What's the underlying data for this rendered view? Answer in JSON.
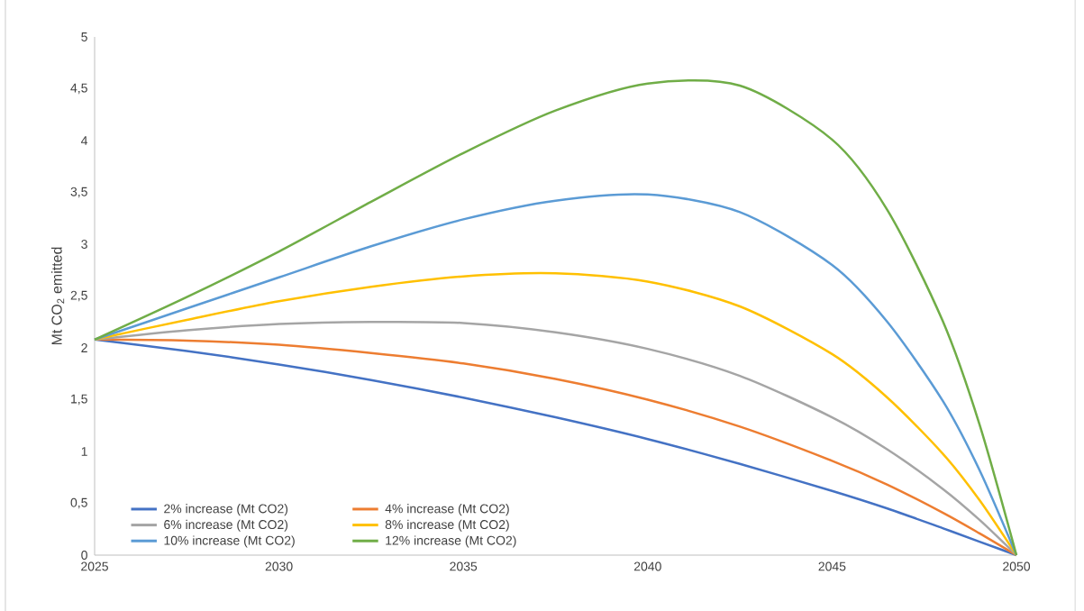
{
  "chart_data": {
    "type": "line",
    "ylabel": "Mt CO$_{2}$ emitted",
    "x": [
      2025,
      2027.5,
      2030,
      2032.5,
      2035,
      2037.5,
      2040,
      2042.5,
      2045,
      2046.5,
      2048,
      2049,
      2050
    ],
    "series": [
      {
        "name": "2% increase (Mt CO2)",
        "color": "#4472c4",
        "values": [
          2.08,
          1.97,
          1.84,
          1.69,
          1.52,
          1.33,
          1.12,
          0.88,
          0.62,
          0.45,
          0.26,
          0.13,
          0
        ]
      },
      {
        "name": "4% increase (Mt CO2)",
        "color": "#ed7d31",
        "values": [
          2.08,
          2.07,
          2.03,
          1.95,
          1.85,
          1.7,
          1.5,
          1.24,
          0.91,
          0.68,
          0.41,
          0.21,
          0
        ]
      },
      {
        "name": "6% increase (Mt CO2)",
        "color": "#a5a5a5",
        "values": [
          2.08,
          2.17,
          2.23,
          2.25,
          2.24,
          2.15,
          1.99,
          1.73,
          1.33,
          1.02,
          0.64,
          0.34,
          0
        ]
      },
      {
        "name": "8% increase (Mt CO2)",
        "color": "#ffc000",
        "values": [
          2.08,
          2.27,
          2.45,
          2.59,
          2.69,
          2.72,
          2.64,
          2.4,
          1.94,
          1.52,
          0.98,
          0.53,
          0
        ]
      },
      {
        "name": "10% increase (Mt CO2)",
        "color": "#5b9bd5",
        "values": [
          2.08,
          2.38,
          2.68,
          2.98,
          3.24,
          3.42,
          3.48,
          3.31,
          2.8,
          2.25,
          1.49,
          0.82,
          0
        ]
      },
      {
        "name": "12% increase (Mt CO2)",
        "color": "#70ad47",
        "values": [
          2.08,
          2.49,
          2.93,
          3.41,
          3.88,
          4.29,
          4.55,
          4.53,
          4.01,
          3.33,
          2.26,
          1.26,
          0
        ]
      }
    ],
    "xlim": [
      2025,
      2050
    ],
    "xticks": [
      2025,
      2030,
      2035,
      2040,
      2045,
      2050
    ],
    "ylim": [
      0,
      5
    ],
    "yticks": [
      0,
      {
        "value": 0.5,
        "label": "0,5"
      },
      1,
      {
        "value": 1.5,
        "label": "1,5"
      },
      2,
      {
        "value": 2.5,
        "label": "2,5"
      },
      3,
      {
        "value": 3.5,
        "label": "3,5"
      },
      4,
      {
        "value": 4.5,
        "label": "4,5"
      },
      5
    ],
    "grid": false,
    "legend": "bottom left",
    "marker": "none",
    "line_style": "solid"
  }
}
